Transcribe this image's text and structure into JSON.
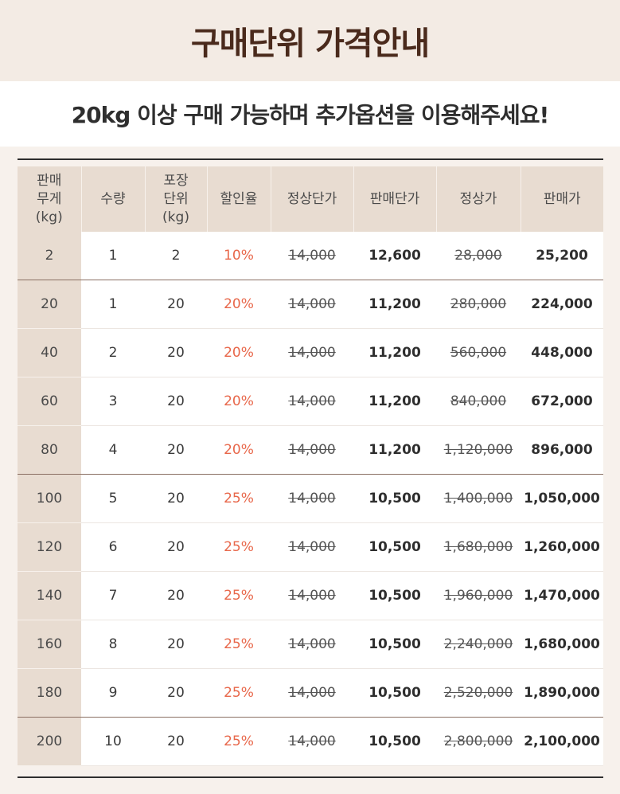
{
  "title": "구매단위 가격안내",
  "subtitle": "20kg 이상 구매 가능하며 추가옵션을 이용해주세요!",
  "table": {
    "headers": [
      [
        "판매",
        "무게",
        "(kg)"
      ],
      [
        "수량"
      ],
      [
        "포장",
        "단위",
        "(kg)"
      ],
      [
        "할인율"
      ],
      [
        "정상단가"
      ],
      [
        "판매단가"
      ],
      [
        "정상가"
      ],
      [
        "판매가"
      ]
    ],
    "rows": [
      [
        "2",
        "1",
        "2",
        "10%",
        "14,000",
        "12,600",
        "28,000",
        "25,200"
      ],
      [
        "20",
        "1",
        "20",
        "20%",
        "14,000",
        "11,200",
        "280,000",
        "224,000"
      ],
      [
        "40",
        "2",
        "20",
        "20%",
        "14,000",
        "11,200",
        "560,000",
        "448,000"
      ],
      [
        "60",
        "3",
        "20",
        "20%",
        "14,000",
        "11,200",
        "840,000",
        "672,000"
      ],
      [
        "80",
        "4",
        "20",
        "20%",
        "14,000",
        "11,200",
        "1,120,000",
        "896,000"
      ],
      [
        "100",
        "5",
        "20",
        "25%",
        "14,000",
        "10,500",
        "1,400,000",
        "1,050,000"
      ],
      [
        "120",
        "6",
        "20",
        "25%",
        "14,000",
        "10,500",
        "1,680,000",
        "1,260,000"
      ],
      [
        "140",
        "7",
        "20",
        "25%",
        "14,000",
        "10,500",
        "1,960,000",
        "1,470,000"
      ],
      [
        "160",
        "8",
        "20",
        "25%",
        "14,000",
        "10,500",
        "2,240,000",
        "1,680,000"
      ],
      [
        "180",
        "9",
        "20",
        "25%",
        "14,000",
        "10,500",
        "2,520,000",
        "1,890,000"
      ],
      [
        "200",
        "10",
        "20",
        "25%",
        "14,000",
        "10,500",
        "2,800,000",
        "2,100,000"
      ]
    ]
  },
  "colors": {
    "title": "#4a2a1c",
    "discount": "#e8674a",
    "header_bg": "#e8dcd1",
    "page_bg": "#f7f1ec"
  }
}
